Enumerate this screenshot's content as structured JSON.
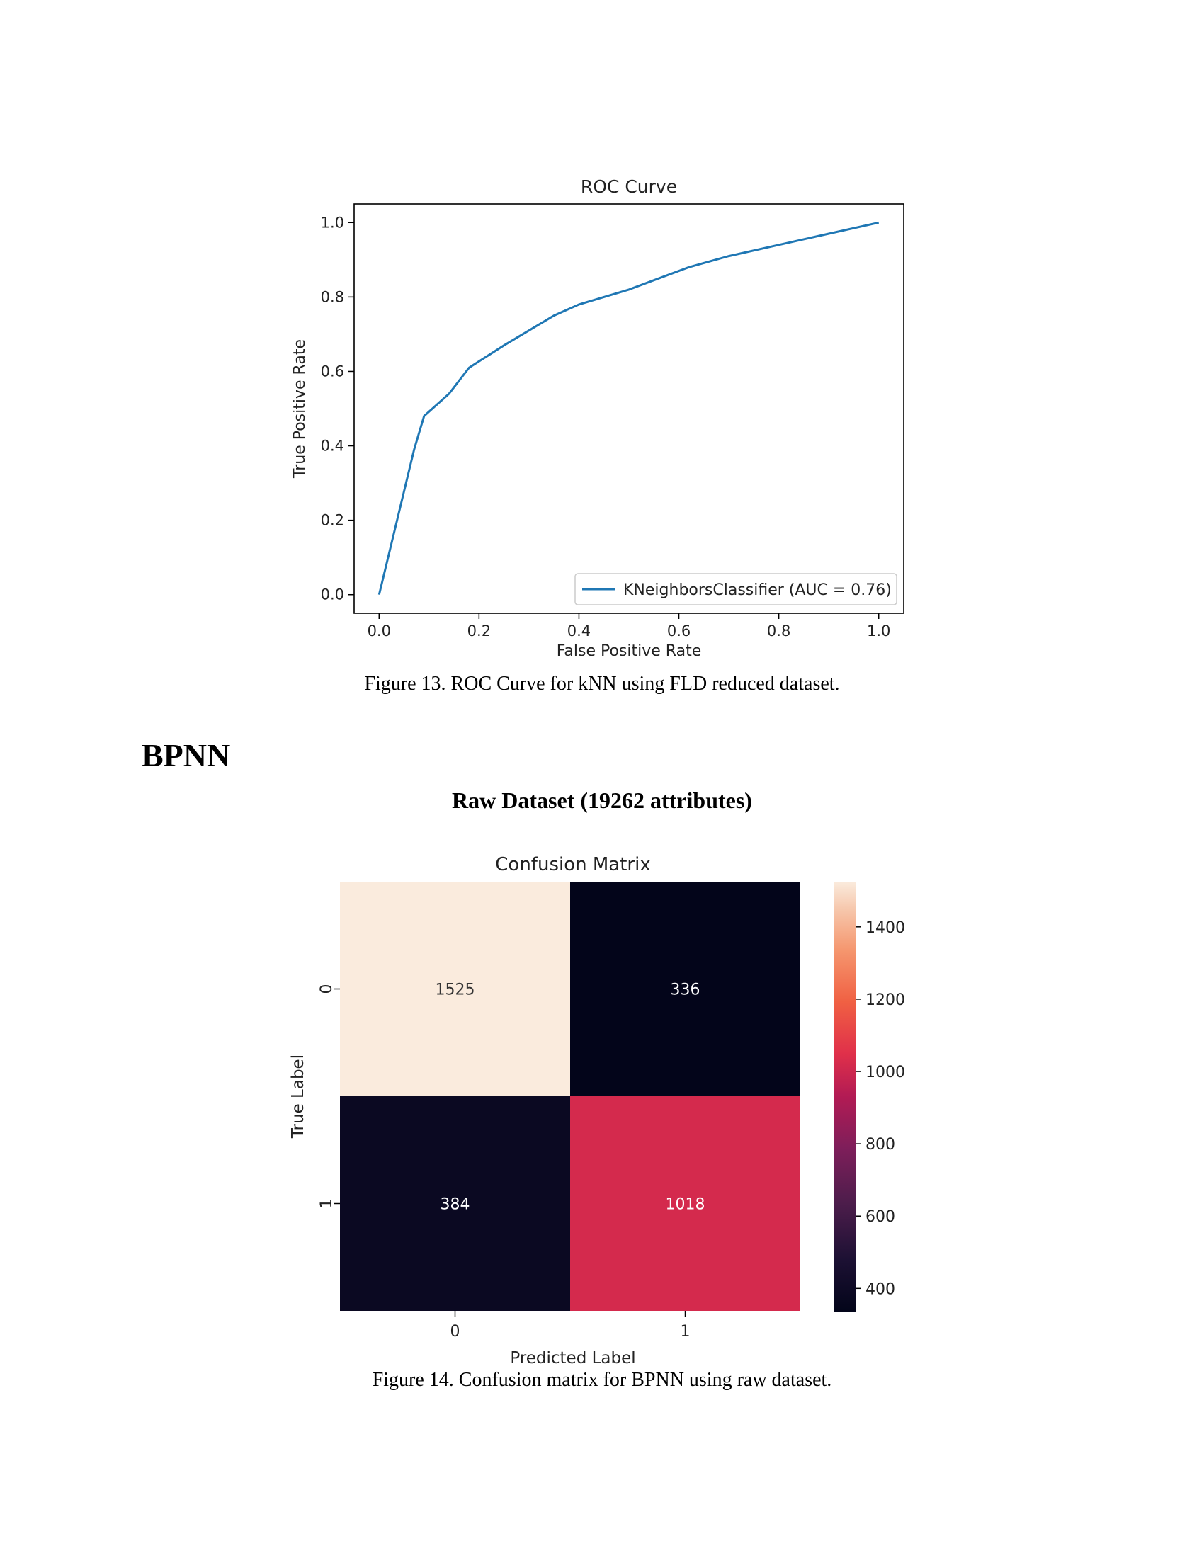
{
  "roc": {
    "title": "ROC Curve",
    "xlabel": "False Positive Rate",
    "ylabel": "True Positive Rate",
    "caption": "Figure 13. ROC Curve for kNN using FLD reduced dataset."
  },
  "section": {
    "heading": "BPNN",
    "subheading": "Raw Dataset (19262 attributes)"
  },
  "cm": {
    "title": "Confusion Matrix",
    "xlabel": "Predicted Label",
    "ylabel": "True Label",
    "caption": "Figure 14. Confusion matrix for BPNN using raw dataset."
  },
  "chart_data": [
    {
      "type": "line",
      "title": "ROC Curve",
      "xlabel": "False Positive Rate",
      "ylabel": "True Positive Rate",
      "xlim": [
        -0.05,
        1.05
      ],
      "ylim": [
        -0.05,
        1.05
      ],
      "xticks": [
        0.0,
        0.2,
        0.4,
        0.6,
        0.8,
        1.0
      ],
      "xtick_labels": [
        "0.0",
        "0.2",
        "0.4",
        "0.6",
        "0.8",
        "1.0"
      ],
      "yticks": [
        0.0,
        0.2,
        0.4,
        0.6,
        0.8,
        1.0
      ],
      "ytick_labels": [
        "0.0",
        "0.2",
        "0.4",
        "0.6",
        "0.8",
        "1.0"
      ],
      "legend_position": "lower-right",
      "series": [
        {
          "name": "KNeighborsClassifier (AUC = 0.76)",
          "color": "#1f77b4",
          "x": [
            0.0,
            0.07,
            0.09,
            0.14,
            0.18,
            0.25,
            0.35,
            0.4,
            0.5,
            0.58,
            0.62,
            0.7,
            0.8,
            0.9,
            1.0
          ],
          "y": [
            0.0,
            0.39,
            0.48,
            0.54,
            0.61,
            0.67,
            0.75,
            0.78,
            0.82,
            0.86,
            0.88,
            0.91,
            0.94,
            0.97,
            1.0
          ]
        }
      ],
      "grid": false
    },
    {
      "type": "heatmap",
      "title": "Confusion Matrix",
      "xlabel": "Predicted Label",
      "ylabel": "True Label",
      "row_labels": [
        "0",
        "1"
      ],
      "col_labels": [
        "0",
        "1"
      ],
      "values": [
        [
          1525,
          336
        ],
        [
          384,
          1018
        ]
      ],
      "colorbar": {
        "min": 336,
        "max": 1525,
        "ticks": [
          400,
          600,
          800,
          1000,
          1200,
          1400
        ],
        "tick_labels": [
          "400",
          "600",
          "800",
          "1000",
          "1200",
          "1400"
        ]
      }
    }
  ]
}
